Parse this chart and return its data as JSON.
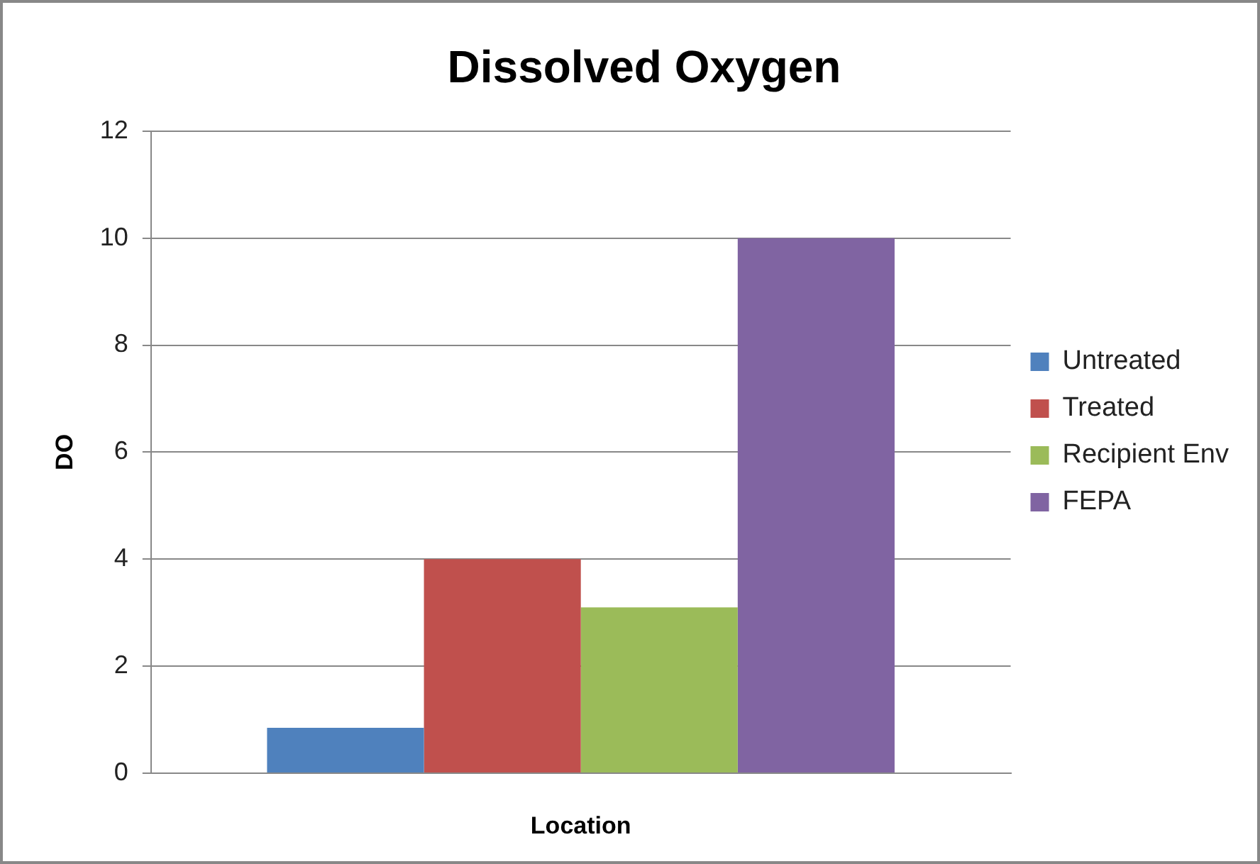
{
  "chart_data": {
    "type": "bar",
    "title": "Dissolved Oxygen",
    "xlabel": "Location",
    "ylabel": "DO",
    "categories": [
      null
    ],
    "series": [
      {
        "name": "Untreated",
        "color": "#4f81bd",
        "values": [
          0.85
        ]
      },
      {
        "name": "Treated",
        "color": "#c0504d",
        "values": [
          4
        ]
      },
      {
        "name": "Recipient Env",
        "color": "#9bbb59",
        "values": [
          3.1
        ]
      },
      {
        "name": "FEPA",
        "color": "#8064a2",
        "values": [
          10
        ]
      }
    ],
    "ylim": [
      0,
      12
    ],
    "yticks": [
      0,
      2,
      4,
      6,
      8,
      10,
      12
    ],
    "grid": "y",
    "legend": "right"
  }
}
